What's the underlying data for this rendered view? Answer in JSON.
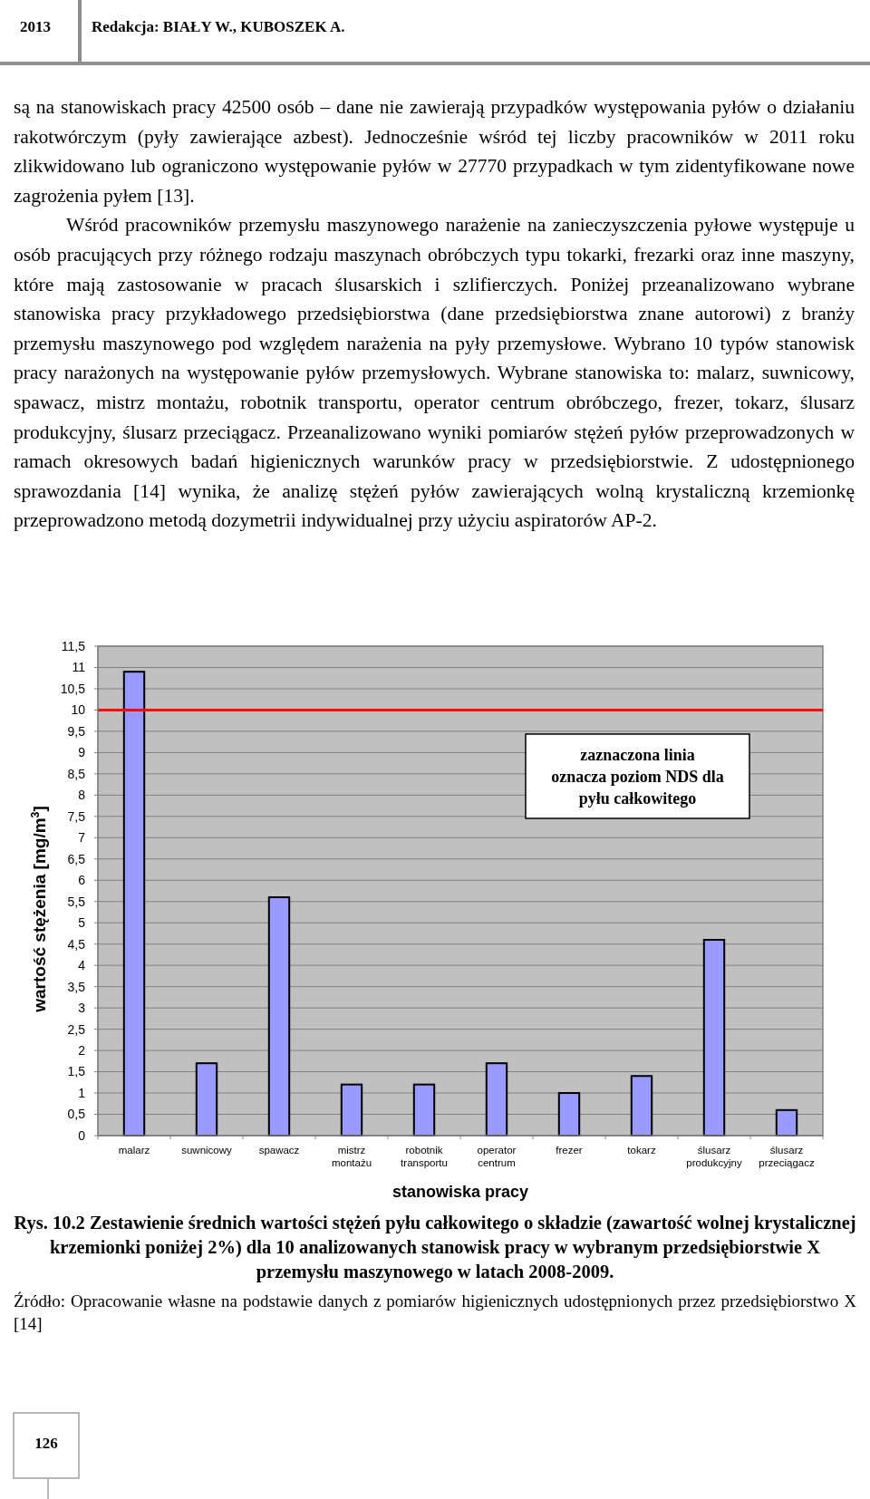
{
  "chart_data": {
    "type": "bar",
    "title": "Rys. 10.2 Zestawienie średnich wartości stężeń pyłu całkowitego o składzie (zawartość wolnej krystalicznej krzemionki poniżej 2%) dla 10 analizowanych stanowisk pracy w wybranym przedsiębiorstwie X przemysłu maszynowego w latach 2008-2009.",
    "xlabel": "stanowiska pracy",
    "ylabel": "wartość stężenia [mg/m$^{3}$]",
    "categories": [
      "malarz",
      "suwnicowy",
      "spawacz",
      "mistrz montażu",
      "robotnik transportu",
      "operator centrum",
      "frezer",
      "tokarz",
      "ślusarz produkcyjny",
      "ślusarz przeciągacz"
    ],
    "values": [
      10.9,
      1.7,
      5.6,
      1.2,
      1.2,
      1.7,
      1.0,
      1.4,
      4.6,
      0.6
    ],
    "color": "#9999ff",
    "ylim": [
      0,
      11.5
    ],
    "yticks": [
      0,
      {
        "value": 0.5,
        "label": "0,5"
      },
      1,
      {
        "value": 1.5,
        "label": "1,5"
      },
      2,
      {
        "value": 2.5,
        "label": "2,5"
      },
      3,
      {
        "value": 3.5,
        "label": "3,5"
      },
      4,
      {
        "value": 4.5,
        "label": "4,5"
      },
      5,
      {
        "value": 5.5,
        "label": "5,5"
      },
      6,
      {
        "value": 6.5,
        "label": "6,5"
      },
      7,
      {
        "value": 7.5,
        "label": "7,5"
      },
      8,
      {
        "value": 8.5,
        "label": "8,5"
      },
      9,
      {
        "value": 9.5,
        "label": "9,5"
      },
      10,
      {
        "value": 10.5,
        "label": "10,5"
      },
      11,
      {
        "value": 11.5,
        "label": "11,5"
      }
    ],
    "grid": "y",
    "ref_lines": [
      {
        "axis": "y",
        "value": 10,
        "color": "#ff0000"
      }
    ],
    "annotations": [
      "2013",
      "Redakcja: BIAŁY W., KUBOSZEK A.",
      "są na stanowiskach pracy 42500 osób – dane nie zawierają przypadków występowania pyłów o działaniu rakotwórczym (pyły zawierające azbest). Jednocześnie wśród tej liczby pracowników w 2011 roku zlikwidowano lub ograniczono występowanie pyłów w 27770 przypadkach w tym zidentyfikowane nowe zagrożenia pyłem [13].",
      "Wśród pracowników przemysłu maszynowego narażenie na zanieczyszczenia pyłowe występuje u osób pracujących przy różnego rodzaju maszynach obróbczych typu tokarki, frezarki  oraz inne maszyny, które mają zastosowanie w pracach ślusarskich i szlifierczych. Poniżej przeanalizowano wybrane stanowiska pracy przykładowego przedsiębiorstwa (dane przedsiębiorstwa znane autorowi) z branży przemysłu maszynowego pod względem narażenia na pyły przemysłowe. Wybrano 10 typów stanowisk pracy narażonych na występowanie pyłów przemysłowych. Wybrane stanowiska to: malarz, suwnicowy, spawacz, mistrz montażu, robotnik transportu, operator centrum obróbczego, frezer, tokarz, ślusarz produkcyjny, ślusarz przeciągacz. Przeanalizowano wyniki pomiarów stężeń pyłów przeprowadzonych w ramach okresowych badań higienicznych warunków pracy w przedsiębiorstwie. Z udostępnionego sprawozdania [14] wynika, że analizę stężeń pyłów zawierających wolną krystaliczną krzemionkę przeprowadzono metodą dozymetrii indywidualnej przy użyciu aspiratorów AP-2.",
      "zaznaczona linia oznacza poziom NDS dla pyłu całkowitego",
      "Źródło: Opracowanie własne na podstawie danych z pomiarów higienicznych udostępnionych przez przedsiębiorstwo X [14]",
      "126"
    ]
  }
}
